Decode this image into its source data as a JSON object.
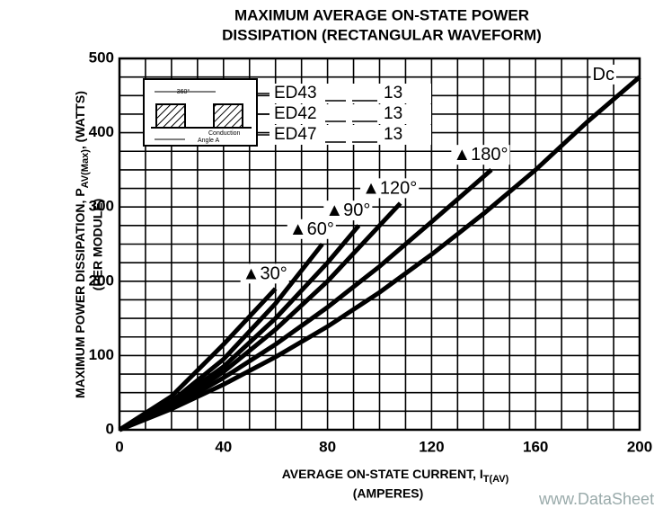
{
  "chart_data": {
    "type": "line",
    "title": [
      "MAXIMUM AVERAGE ON-STATE  POWER",
      "DISSIPATION (RECTANGULAR WAVEFORM)"
    ],
    "y_label": [
      "MAXIMUM POWER DISSIPATION, P",
      "AV(Max)",
      ", (WATTS)"
    ],
    "y_label_2": "(PER MODULE)",
    "x_label": [
      "AVERAGE ON-STATE CURRENT, I",
      "T(AV)"
    ],
    "x_label_2": "(AMPERES)",
    "xlim": [
      0,
      200
    ],
    "ylim": [
      0,
      500
    ],
    "xticks": [
      0,
      40,
      80,
      120,
      160,
      200
    ],
    "yticks": [
      0,
      100,
      200,
      300,
      400,
      500
    ],
    "xgrid": [
      0,
      10,
      20,
      30,
      40,
      50,
      60,
      70,
      80,
      90,
      100,
      110,
      120,
      130,
      140,
      150,
      160,
      170,
      180,
      190,
      200
    ],
    "ygrid": [
      0,
      25,
      50,
      75,
      100,
      125,
      150,
      175,
      200,
      225,
      250,
      275,
      300,
      325,
      350,
      375,
      400,
      425,
      450,
      475,
      500
    ],
    "grid": true,
    "color": "#000000",
    "series": [
      {
        "name": "▲30°",
        "x": [
          0,
          20,
          40,
          60
        ],
        "values": [
          0,
          45,
          115,
          190
        ]
      },
      {
        "name": "▲60°",
        "x": [
          0,
          20,
          40,
          60,
          78
        ],
        "values": [
          0,
          38,
          95,
          170,
          250
        ]
      },
      {
        "name": "▲90°",
        "x": [
          0,
          20,
          40,
          60,
          80,
          92
        ],
        "values": [
          0,
          35,
          85,
          150,
          225,
          275
        ]
      },
      {
        "name": "▲120°",
        "x": [
          0,
          20,
          40,
          60,
          80,
          108
        ],
        "values": [
          0,
          32,
          78,
          135,
          200,
          305
        ]
      },
      {
        "name": "▲180°",
        "x": [
          0,
          20,
          40,
          60,
          80,
          100,
          120,
          143
        ],
        "values": [
          0,
          30,
          70,
          115,
          165,
          220,
          280,
          350
        ]
      },
      {
        "name": "Dc",
        "x": [
          0,
          20,
          40,
          60,
          80,
          100,
          120,
          140,
          160,
          180,
          200
        ],
        "values": [
          0,
          28,
          61,
          98,
          139,
          185,
          236,
          291,
          350,
          415,
          475
        ]
      }
    ],
    "inset": {
      "period": "360°",
      "conduction": [
        "Conduction",
        "Angle A"
      ],
      "rows": [
        [
          "ED43",
          "13"
        ],
        [
          "ED42",
          "13"
        ],
        [
          "ED47",
          "13"
        ]
      ]
    },
    "watermark": "www.DataSheet4U.com"
  }
}
